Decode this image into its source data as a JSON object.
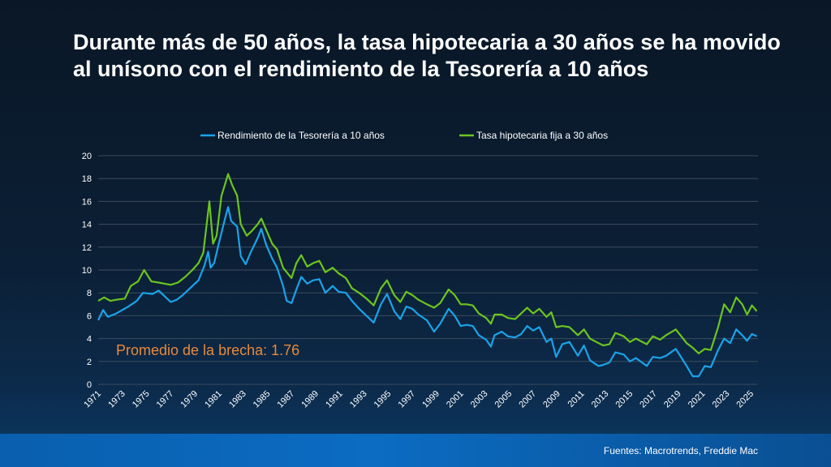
{
  "title": "Durante más de 50 años, la tasa hipotecaria a 30 años se ha movido al unísono con el rendimiento de la Tesorería a 10 años",
  "source": "Fuentes: Macrotrends, Freddie Mac",
  "colors": {
    "treasury": "#1aa3ea",
    "mortgage": "#6cc51e",
    "annotation": "#e8893a",
    "grid": "#3d4c5c"
  },
  "chart_data": {
    "type": "line",
    "title": "",
    "xlabel": "",
    "ylabel": "",
    "xlim": [
      1971,
      2025.6
    ],
    "ylim": [
      0,
      20
    ],
    "yticks": [
      0,
      2,
      4,
      6,
      8,
      10,
      12,
      14,
      16,
      18,
      20
    ],
    "xticks": [
      "1971",
      "1973",
      "1975",
      "1977",
      "1979",
      "1981",
      "1983",
      "1985",
      "1987",
      "1989",
      "1991",
      "1993",
      "1995",
      "1997",
      "1999",
      "2001",
      "2003",
      "2005",
      "2007",
      "2009",
      "2011",
      "2013",
      "2015",
      "2017",
      "2019",
      "2021",
      "2023",
      "2025"
    ],
    "grid": true,
    "legend_position": "top-center",
    "annotation": "Promedio de la brecha: 1.76",
    "series": [
      {
        "name": "Rendimiento de la Tesorería a 10 años",
        "color": "#1aa3ea",
        "points": [
          [
            1971,
            5.6
          ],
          [
            1971.4,
            6.5
          ],
          [
            1971.8,
            5.9
          ],
          [
            1972.5,
            6.2
          ],
          [
            1973.5,
            6.8
          ],
          [
            1974.2,
            7.3
          ],
          [
            1974.7,
            8.0
          ],
          [
            1975.5,
            7.9
          ],
          [
            1976,
            8.2
          ],
          [
            1976.5,
            7.7
          ],
          [
            1977,
            7.2
          ],
          [
            1977.5,
            7.4
          ],
          [
            1978,
            7.8
          ],
          [
            1978.8,
            8.6
          ],
          [
            1979.3,
            9.1
          ],
          [
            1979.8,
            10.4
          ],
          [
            1980.1,
            11.6
          ],
          [
            1980.3,
            10.2
          ],
          [
            1980.6,
            10.6
          ],
          [
            1981,
            12.4
          ],
          [
            1981.5,
            14.5
          ],
          [
            1981.75,
            15.5
          ],
          [
            1982,
            14.3
          ],
          [
            1982.5,
            13.8
          ],
          [
            1982.8,
            11.2
          ],
          [
            1983.2,
            10.5
          ],
          [
            1983.6,
            11.5
          ],
          [
            1984.2,
            12.8
          ],
          [
            1984.5,
            13.6
          ],
          [
            1984.9,
            12.2
          ],
          [
            1985.4,
            11.0
          ],
          [
            1985.8,
            10.2
          ],
          [
            1986.3,
            8.6
          ],
          [
            1986.6,
            7.3
          ],
          [
            1987,
            7.1
          ],
          [
            1987.4,
            8.3
          ],
          [
            1987.8,
            9.4
          ],
          [
            1988.3,
            8.8
          ],
          [
            1988.8,
            9.1
          ],
          [
            1989.3,
            9.2
          ],
          [
            1989.8,
            8.0
          ],
          [
            1990.4,
            8.6
          ],
          [
            1990.9,
            8.1
          ],
          [
            1991.5,
            8.0
          ],
          [
            1992,
            7.3
          ],
          [
            1992.6,
            6.6
          ],
          [
            1993.2,
            6.0
          ],
          [
            1993.8,
            5.4
          ],
          [
            1994.4,
            7.0
          ],
          [
            1994.9,
            7.9
          ],
          [
            1995.5,
            6.4
          ],
          [
            1996,
            5.7
          ],
          [
            1996.5,
            6.8
          ],
          [
            1997,
            6.6
          ],
          [
            1997.5,
            6.1
          ],
          [
            1998.2,
            5.6
          ],
          [
            1998.8,
            4.6
          ],
          [
            1999.3,
            5.3
          ],
          [
            2000,
            6.6
          ],
          [
            2000.5,
            6.0
          ],
          [
            2001,
            5.1
          ],
          [
            2001.5,
            5.2
          ],
          [
            2002,
            5.1
          ],
          [
            2002.5,
            4.3
          ],
          [
            2003.1,
            3.9
          ],
          [
            2003.5,
            3.3
          ],
          [
            2003.8,
            4.3
          ],
          [
            2004.4,
            4.6
          ],
          [
            2004.9,
            4.2
          ],
          [
            2005.5,
            4.1
          ],
          [
            2006,
            4.4
          ],
          [
            2006.5,
            5.1
          ],
          [
            2007,
            4.7
          ],
          [
            2007.5,
            5.0
          ],
          [
            2008.1,
            3.7
          ],
          [
            2008.5,
            4.0
          ],
          [
            2008.9,
            2.4
          ],
          [
            2009.4,
            3.5
          ],
          [
            2010,
            3.7
          ],
          [
            2010.7,
            2.5
          ],
          [
            2011.2,
            3.4
          ],
          [
            2011.7,
            2.1
          ],
          [
            2012.4,
            1.6
          ],
          [
            2012.8,
            1.7
          ],
          [
            2013.3,
            1.9
          ],
          [
            2013.8,
            2.8
          ],
          [
            2014.5,
            2.6
          ],
          [
            2015,
            2.0
          ],
          [
            2015.5,
            2.3
          ],
          [
            2016.4,
            1.6
          ],
          [
            2016.9,
            2.4
          ],
          [
            2017.5,
            2.3
          ],
          [
            2018,
            2.5
          ],
          [
            2018.8,
            3.1
          ],
          [
            2019.4,
            2.1
          ],
          [
            2019.7,
            1.6
          ],
          [
            2020.2,
            0.7
          ],
          [
            2020.7,
            0.7
          ],
          [
            2021.2,
            1.6
          ],
          [
            2021.7,
            1.5
          ],
          [
            2022.3,
            3.0
          ],
          [
            2022.8,
            4.0
          ],
          [
            2023.3,
            3.6
          ],
          [
            2023.8,
            4.8
          ],
          [
            2024.3,
            4.3
          ],
          [
            2024.7,
            3.8
          ],
          [
            2025.1,
            4.4
          ],
          [
            2025.5,
            4.2
          ]
        ]
      },
      {
        "name": "Tasa hipotecaria fija a 30 años",
        "color": "#6cc51e",
        "points": [
          [
            1971,
            7.3
          ],
          [
            1971.5,
            7.6
          ],
          [
            1972,
            7.3
          ],
          [
            1972.5,
            7.4
          ],
          [
            1973.2,
            7.5
          ],
          [
            1973.7,
            8.6
          ],
          [
            1974.3,
            9.0
          ],
          [
            1974.8,
            10.0
          ],
          [
            1975.4,
            9.0
          ],
          [
            1976,
            8.9
          ],
          [
            1976.5,
            8.8
          ],
          [
            1977,
            8.7
          ],
          [
            1977.6,
            8.9
          ],
          [
            1978.2,
            9.4
          ],
          [
            1978.8,
            10.0
          ],
          [
            1979.3,
            10.6
          ],
          [
            1979.7,
            11.5
          ],
          [
            1980.2,
            16.0
          ],
          [
            1980.5,
            12.3
          ],
          [
            1980.8,
            13.0
          ],
          [
            1981.2,
            16.5
          ],
          [
            1981.5,
            17.5
          ],
          [
            1981.75,
            18.4
          ],
          [
            1982.1,
            17.4
          ],
          [
            1982.5,
            16.5
          ],
          [
            1982.8,
            14.0
          ],
          [
            1983.3,
            13.0
          ],
          [
            1983.7,
            13.4
          ],
          [
            1984.2,
            14.0
          ],
          [
            1984.5,
            14.5
          ],
          [
            1984.9,
            13.5
          ],
          [
            1985.4,
            12.3
          ],
          [
            1985.8,
            11.8
          ],
          [
            1986.3,
            10.2
          ],
          [
            1986.6,
            9.8
          ],
          [
            1987,
            9.3
          ],
          [
            1987.4,
            10.6
          ],
          [
            1987.8,
            11.3
          ],
          [
            1988.3,
            10.3
          ],
          [
            1988.8,
            10.6
          ],
          [
            1989.3,
            10.8
          ],
          [
            1989.8,
            9.8
          ],
          [
            1990.4,
            10.2
          ],
          [
            1990.9,
            9.7
          ],
          [
            1991.5,
            9.3
          ],
          [
            1992,
            8.4
          ],
          [
            1992.6,
            8.0
          ],
          [
            1993.2,
            7.5
          ],
          [
            1993.8,
            6.9
          ],
          [
            1994.4,
            8.4
          ],
          [
            1994.9,
            9.1
          ],
          [
            1995.5,
            7.8
          ],
          [
            1996,
            7.2
          ],
          [
            1996.5,
            8.1
          ],
          [
            1997,
            7.8
          ],
          [
            1997.5,
            7.4
          ],
          [
            1998.2,
            7.0
          ],
          [
            1998.8,
            6.7
          ],
          [
            1999.3,
            7.1
          ],
          [
            2000,
            8.3
          ],
          [
            2000.5,
            7.8
          ],
          [
            2001,
            7.0
          ],
          [
            2001.5,
            7.0
          ],
          [
            2002,
            6.9
          ],
          [
            2002.5,
            6.2
          ],
          [
            2003.1,
            5.8
          ],
          [
            2003.5,
            5.3
          ],
          [
            2003.8,
            6.1
          ],
          [
            2004.4,
            6.1
          ],
          [
            2004.9,
            5.8
          ],
          [
            2005.5,
            5.7
          ],
          [
            2006,
            6.2
          ],
          [
            2006.5,
            6.7
          ],
          [
            2007,
            6.2
          ],
          [
            2007.5,
            6.6
          ],
          [
            2008.1,
            5.9
          ],
          [
            2008.5,
            6.3
          ],
          [
            2008.9,
            5.0
          ],
          [
            2009.4,
            5.1
          ],
          [
            2010,
            5.0
          ],
          [
            2010.7,
            4.3
          ],
          [
            2011.2,
            4.8
          ],
          [
            2011.7,
            4.0
          ],
          [
            2012.4,
            3.6
          ],
          [
            2012.8,
            3.4
          ],
          [
            2013.3,
            3.5
          ],
          [
            2013.8,
            4.5
          ],
          [
            2014.5,
            4.2
          ],
          [
            2015,
            3.7
          ],
          [
            2015.5,
            4.0
          ],
          [
            2016.4,
            3.5
          ],
          [
            2016.9,
            4.2
          ],
          [
            2017.5,
            3.9
          ],
          [
            2018,
            4.3
          ],
          [
            2018.8,
            4.8
          ],
          [
            2019.4,
            4.0
          ],
          [
            2019.7,
            3.6
          ],
          [
            2020.2,
            3.2
          ],
          [
            2020.7,
            2.7
          ],
          [
            2021.2,
            3.1
          ],
          [
            2021.7,
            3.0
          ],
          [
            2022.3,
            5.0
          ],
          [
            2022.8,
            7.0
          ],
          [
            2023.3,
            6.3
          ],
          [
            2023.8,
            7.6
          ],
          [
            2024.3,
            7.0
          ],
          [
            2024.7,
            6.1
          ],
          [
            2025.1,
            6.9
          ],
          [
            2025.5,
            6.4
          ]
        ]
      }
    ]
  }
}
